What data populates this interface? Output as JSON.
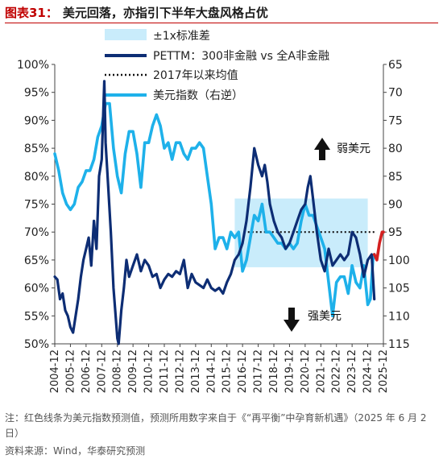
{
  "figure": {
    "number": "图表31：",
    "title": "美元回落，亦指引下半年大盘风格占优",
    "note": "注：红色线条为美元指数预测值，预测所用数字来自于《“再平衡”中孕育新机遇》（2025 年 6 月 2 日）",
    "source": "资料来源：Wind，华泰研究预测"
  },
  "chart_data": {
    "type": "line",
    "x_tick_labels": [
      "2004-12",
      "2005-12",
      "2006-12",
      "2007-12",
      "2008-12",
      "2009-12",
      "2010-12",
      "2011-12",
      "2012-12",
      "2013-12",
      "2014-12",
      "2015-12",
      "2016-12",
      "2017-12",
      "2018-12",
      "2019-12",
      "2020-12",
      "2021-12",
      "2022-12",
      "2023-12",
      "2024-12",
      "2025-12"
    ],
    "xlim": [
      "2004-12",
      "2025-12"
    ],
    "y_left": {
      "label": "",
      "ylim": [
        0.5,
        1.0
      ],
      "tick_labels": [
        "50%",
        "55%",
        "60%",
        "65%",
        "70%",
        "75%",
        "80%",
        "85%",
        "90%",
        "95%",
        "100%"
      ]
    },
    "y_right": {
      "label": "",
      "ylim": [
        115,
        65
      ],
      "inverted": true,
      "tick_labels": [
        "65",
        "70",
        "75",
        "80",
        "85",
        "90",
        "95",
        "100",
        "105",
        "110",
        "115"
      ]
    },
    "legend": {
      "position": "top-left",
      "entries": [
        "±1x标准差",
        "PETTM：300非金融 vs 全A非金融",
        "2017年以来均值",
        "美元指数（右逆）"
      ]
    },
    "band": {
      "name": "±1x标准差",
      "x_start": "2016-06",
      "x_end": "2024-12",
      "y_range": [
        0.637,
        0.76
      ],
      "color": "#c9ecfb"
    },
    "mean_line": {
      "name": "2017年以来均值",
      "x_start": "2017-01",
      "x_end": "2025-06",
      "value": 0.7,
      "color": "#111111"
    },
    "series": [
      {
        "name": "PETTM：300非金融 vs 全A非金融",
        "axis": "left",
        "color": "#0d2d74",
        "points": [
          [
            "2004-12",
            0.62
          ],
          [
            "2005-02",
            0.615
          ],
          [
            "2005-04",
            0.58
          ],
          [
            "2005-06",
            0.59
          ],
          [
            "2005-08",
            0.56
          ],
          [
            "2005-10",
            0.55
          ],
          [
            "2005-12",
            0.53
          ],
          [
            "2006-02",
            0.52
          ],
          [
            "2006-04",
            0.55
          ],
          [
            "2006-06",
            0.58
          ],
          [
            "2006-08",
            0.62
          ],
          [
            "2006-10",
            0.65
          ],
          [
            "2006-12",
            0.67
          ],
          [
            "2007-02",
            0.69
          ],
          [
            "2007-04",
            0.64
          ],
          [
            "2007-06",
            0.72
          ],
          [
            "2007-08",
            0.67
          ],
          [
            "2007-10",
            0.8
          ],
          [
            "2007-12",
            0.83
          ],
          [
            "2008-02",
            0.97
          ],
          [
            "2008-03",
            0.86
          ],
          [
            "2008-05",
            0.78
          ],
          [
            "2008-07",
            0.7
          ],
          [
            "2008-09",
            0.6
          ],
          [
            "2008-11",
            0.54
          ],
          [
            "2008-12",
            0.51
          ],
          [
            "2009-01",
            0.5
          ],
          [
            "2009-03",
            0.56
          ],
          [
            "2009-05",
            0.6
          ],
          [
            "2009-07",
            0.65
          ],
          [
            "2009-09",
            0.62
          ],
          [
            "2009-12",
            0.64
          ],
          [
            "2010-03",
            0.66
          ],
          [
            "2010-06",
            0.63
          ],
          [
            "2010-09",
            0.65
          ],
          [
            "2010-12",
            0.64
          ],
          [
            "2011-03",
            0.62
          ],
          [
            "2011-06",
            0.625
          ],
          [
            "2011-09",
            0.6
          ],
          [
            "2011-12",
            0.615
          ],
          [
            "2012-03",
            0.625
          ],
          [
            "2012-06",
            0.62
          ],
          [
            "2012-09",
            0.63
          ],
          [
            "2012-12",
            0.625
          ],
          [
            "2013-03",
            0.65
          ],
          [
            "2013-06",
            0.6
          ],
          [
            "2013-09",
            0.625
          ],
          [
            "2013-12",
            0.61
          ],
          [
            "2014-03",
            0.605
          ],
          [
            "2014-06",
            0.6
          ],
          [
            "2014-09",
            0.615
          ],
          [
            "2014-12",
            0.6
          ],
          [
            "2015-03",
            0.595
          ],
          [
            "2015-06",
            0.6
          ],
          [
            "2015-09",
            0.59
          ],
          [
            "2015-12",
            0.61
          ],
          [
            "2016-03",
            0.625
          ],
          [
            "2016-06",
            0.65
          ],
          [
            "2016-09",
            0.66
          ],
          [
            "2016-12",
            0.68
          ],
          [
            "2017-03",
            0.72
          ],
          [
            "2017-06",
            0.78
          ],
          [
            "2017-09",
            0.85
          ],
          [
            "2017-12",
            0.82
          ],
          [
            "2018-03",
            0.8
          ],
          [
            "2018-05",
            0.82
          ],
          [
            "2018-07",
            0.79
          ],
          [
            "2018-09",
            0.75
          ],
          [
            "2018-12",
            0.72
          ],
          [
            "2019-03",
            0.7
          ],
          [
            "2019-06",
            0.69
          ],
          [
            "2019-09",
            0.67
          ],
          [
            "2019-12",
            0.68
          ],
          [
            "2020-03",
            0.7
          ],
          [
            "2020-06",
            0.72
          ],
          [
            "2020-09",
            0.74
          ],
          [
            "2020-12",
            0.75
          ],
          [
            "2021-02",
            0.78
          ],
          [
            "2021-04",
            0.8
          ],
          [
            "2021-06",
            0.76
          ],
          [
            "2021-09",
            0.7
          ],
          [
            "2021-12",
            0.65
          ],
          [
            "2022-03",
            0.63
          ],
          [
            "2022-06",
            0.67
          ],
          [
            "2022-09",
            0.64
          ],
          [
            "2022-12",
            0.65
          ],
          [
            "2023-03",
            0.66
          ],
          [
            "2023-06",
            0.65
          ],
          [
            "2023-09",
            0.66
          ],
          [
            "2023-12",
            0.7
          ],
          [
            "2024-03",
            0.69
          ],
          [
            "2024-06",
            0.66
          ],
          [
            "2024-09",
            0.62
          ],
          [
            "2024-12",
            0.65
          ],
          [
            "2025-03",
            0.66
          ],
          [
            "2025-05",
            0.58
          ]
        ]
      },
      {
        "name": "美元指数（右逆）",
        "axis": "right",
        "color": "#1eb1ea",
        "points": [
          [
            "2004-12",
            81
          ],
          [
            "2005-03",
            84
          ],
          [
            "2005-06",
            88
          ],
          [
            "2005-09",
            90
          ],
          [
            "2005-12",
            91
          ],
          [
            "2006-03",
            90
          ],
          [
            "2006-06",
            87
          ],
          [
            "2006-09",
            86
          ],
          [
            "2006-12",
            84
          ],
          [
            "2007-03",
            84
          ],
          [
            "2007-06",
            82
          ],
          [
            "2007-09",
            78
          ],
          [
            "2007-12",
            76
          ],
          [
            "2008-03",
            72
          ],
          [
            "2008-06",
            72
          ],
          [
            "2008-09",
            80
          ],
          [
            "2008-12",
            85
          ],
          [
            "2009-03",
            88
          ],
          [
            "2009-06",
            81
          ],
          [
            "2009-09",
            77
          ],
          [
            "2009-12",
            77
          ],
          [
            "2010-03",
            81
          ],
          [
            "2010-06",
            87
          ],
          [
            "2010-09",
            79
          ],
          [
            "2010-12",
            79
          ],
          [
            "2011-03",
            76
          ],
          [
            "2011-06",
            74
          ],
          [
            "2011-09",
            76
          ],
          [
            "2011-12",
            80
          ],
          [
            "2012-03",
            79
          ],
          [
            "2012-06",
            82
          ],
          [
            "2012-09",
            79
          ],
          [
            "2012-12",
            79
          ],
          [
            "2013-03",
            81
          ],
          [
            "2013-06",
            82
          ],
          [
            "2013-09",
            80
          ],
          [
            "2013-12",
            80
          ],
          [
            "2014-03",
            79
          ],
          [
            "2014-06",
            80
          ],
          [
            "2014-09",
            85
          ],
          [
            "2014-12",
            90
          ],
          [
            "2015-03",
            98
          ],
          [
            "2015-06",
            96
          ],
          [
            "2015-09",
            96
          ],
          [
            "2015-12",
            98
          ],
          [
            "2016-03",
            95
          ],
          [
            "2016-06",
            96
          ],
          [
            "2016-09",
            95
          ],
          [
            "2016-12",
            102
          ],
          [
            "2017-03",
            100
          ],
          [
            "2017-06",
            96
          ],
          [
            "2017-09",
            92
          ],
          [
            "2017-12",
            93
          ],
          [
            "2018-03",
            90
          ],
          [
            "2018-06",
            95
          ],
          [
            "2018-09",
            95
          ],
          [
            "2018-12",
            96
          ],
          [
            "2019-03",
            97
          ],
          [
            "2019-06",
            97
          ],
          [
            "2019-09",
            98
          ],
          [
            "2019-12",
            97
          ],
          [
            "2020-03",
            98
          ],
          [
            "2020-06",
            97
          ],
          [
            "2020-09",
            93
          ],
          [
            "2020-12",
            90
          ],
          [
            "2021-03",
            92
          ],
          [
            "2021-06",
            92
          ],
          [
            "2021-09",
            94
          ],
          [
            "2021-12",
            96
          ],
          [
            "2022-03",
            98
          ],
          [
            "2022-06",
            104
          ],
          [
            "2022-09",
            110
          ],
          [
            "2022-12",
            104
          ],
          [
            "2023-03",
            103
          ],
          [
            "2023-06",
            103
          ],
          [
            "2023-09",
            106
          ],
          [
            "2023-12",
            101
          ],
          [
            "2024-03",
            104
          ],
          [
            "2024-06",
            105
          ],
          [
            "2024-09",
            101
          ],
          [
            "2024-12",
            108
          ],
          [
            "2025-02",
            107
          ],
          [
            "2025-04",
            100
          ],
          [
            "2025-05",
            99
          ]
        ]
      },
      {
        "name": "美元指数预测",
        "axis": "right",
        "color": "#d42020",
        "points": [
          [
            "2025-05",
            99
          ],
          [
            "2025-07",
            100
          ],
          [
            "2025-09",
            97
          ],
          [
            "2025-11",
            95
          ],
          [
            "2025-12",
            95
          ]
        ]
      }
    ],
    "annotations": [
      {
        "text": "弱美元",
        "arrow": "up",
        "position": "top-right"
      },
      {
        "text": "强美元",
        "arrow": "down",
        "position": "bottom-right"
      }
    ]
  }
}
